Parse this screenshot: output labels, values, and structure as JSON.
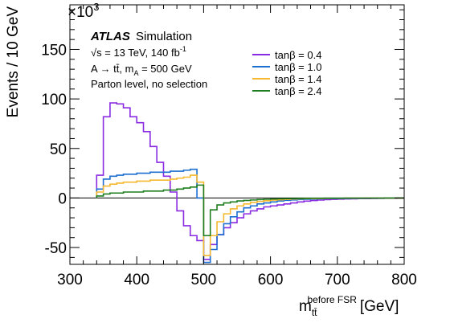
{
  "chart_data": {
    "type": "line",
    "step": true,
    "multiplier_label": "×10",
    "multiplier_exp": "3",
    "xlabel_base": "m",
    "xlabel_sub": "tt̄",
    "xlabel_sup": "before FSR",
    "xlabel_unit": "[GeV]",
    "ylabel": "Events / 10 GeV",
    "xlim": [
      300,
      800
    ],
    "ylim": [
      -67,
      195
    ],
    "xticks": [
      300,
      400,
      500,
      600,
      700,
      800
    ],
    "yticks": [
      -50,
      0,
      50,
      100,
      150
    ],
    "annotations": {
      "atlas": "ATLAS",
      "simulation": "Simulation",
      "energy": "√s = 13 TeV, 140 fb",
      "energy_sup": "-1",
      "process": "A → tt̄, m",
      "process_sub": "A",
      "process_tail": " = 500 GeV",
      "level": "Parton level, no selection"
    },
    "bin_edges": [
      340,
      350,
      360,
      370,
      380,
      390,
      400,
      410,
      420,
      430,
      440,
      450,
      460,
      470,
      480,
      490,
      500,
      510,
      520,
      530,
      540,
      550,
      560,
      570,
      580,
      590,
      600,
      610,
      620,
      630,
      640,
      650,
      660,
      670,
      680,
      690,
      700,
      710,
      720,
      730,
      740,
      750,
      760,
      770,
      780,
      790,
      800
    ],
    "series": [
      {
        "name": "tanβ = 0.4",
        "color": "#8a2be2",
        "values": [
          23,
          82,
          96,
          95,
          91,
          82,
          76,
          67,
          52,
          36,
          22,
          6,
          -13,
          -28,
          -38,
          -43,
          -62,
          -47,
          -37,
          -30,
          -25,
          -20,
          -16,
          -13,
          -11,
          -9,
          -8,
          -7,
          -6,
          -5,
          -4,
          -3.2,
          -2.6,
          -2.1,
          -1.7,
          -1.4,
          -1.2,
          -1.0,
          -0.8,
          -0.7,
          -0.6,
          -0.5,
          -0.4,
          -0.3,
          -0.3,
          -0.2
        ]
      },
      {
        "name": "tanβ = 1.0",
        "color": "#1c6fd1",
        "values": [
          9,
          19,
          22,
          23,
          24,
          24,
          25,
          25,
          26,
          26,
          26,
          27,
          27,
          28,
          29,
          0,
          -65,
          -52,
          -37,
          -26,
          -19,
          -14,
          -10,
          -8,
          -6,
          -5,
          -4,
          -3,
          -2.4,
          -2,
          -1.6,
          -1.3,
          -1.1,
          -0.9,
          -0.7,
          -0.6,
          -0.5,
          -0.4,
          -0.3,
          -0.3,
          -0.2,
          -0.2,
          -0.2,
          -0.1,
          -0.1,
          -0.1
        ]
      },
      {
        "name": "tanβ = 1.4",
        "color": "#f5b82e",
        "values": [
          6,
          12,
          14,
          15,
          16,
          16,
          17,
          17,
          18,
          18,
          18,
          19,
          20,
          21,
          23,
          16,
          -58,
          -38,
          -24,
          -16,
          -11,
          -8,
          -6,
          -4.5,
          -3.5,
          -2.8,
          -2.2,
          -1.8,
          -1.4,
          -1.1,
          -0.9,
          -0.7,
          -0.6,
          -0.5,
          -0.4,
          -0.3,
          -0.3,
          -0.2,
          -0.2,
          -0.2,
          -0.1,
          -0.1,
          -0.1,
          -0.1,
          -0.1,
          -0.1
        ]
      },
      {
        "name": "tanβ = 2.4",
        "color": "#1e7d1e",
        "values": [
          2,
          4,
          5,
          5,
          6,
          6,
          6,
          7,
          7,
          7,
          8,
          8,
          9,
          10,
          11,
          13,
          -38,
          -12,
          -7,
          -5,
          -4,
          -3,
          -2.5,
          -2,
          -1.6,
          -1.3,
          -1.1,
          -0.9,
          -0.7,
          -0.6,
          -0.5,
          -0.4,
          -0.3,
          -0.3,
          -0.2,
          -0.2,
          -0.2,
          -0.1,
          -0.1,
          -0.1,
          -0.1,
          -0.1,
          -0.1,
          0,
          0,
          0
        ]
      }
    ]
  }
}
